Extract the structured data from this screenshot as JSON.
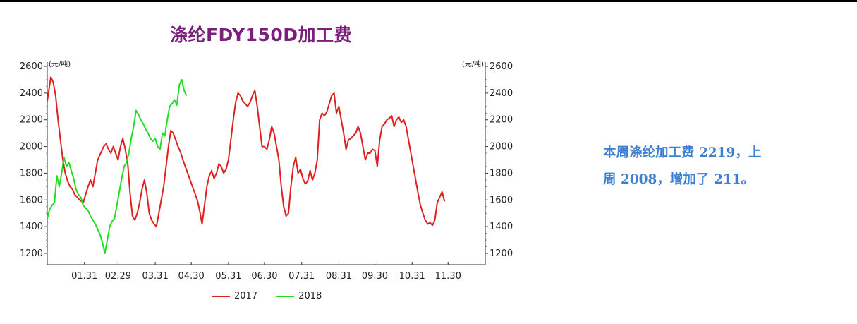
{
  "chart_data": {
    "type": "line",
    "title": "涤纶FDY150D加工费",
    "left_unit": "(元/吨)",
    "right_unit": "(元/吨)",
    "ylim": [
      1200,
      2600
    ],
    "yticks": [
      1200,
      1400,
      1600,
      1800,
      2000,
      2200,
      2400,
      2600
    ],
    "xlim": [
      0,
      365
    ],
    "xticks": [
      {
        "label": "01.31",
        "x": 31
      },
      {
        "label": "02.29",
        "x": 59
      },
      {
        "label": "03.31",
        "x": 90
      },
      {
        "label": "04.30",
        "x": 120
      },
      {
        "label": "05.31",
        "x": 151
      },
      {
        "label": "06.30",
        "x": 181
      },
      {
        "label": "07.31",
        "x": 212
      },
      {
        "label": "08.31",
        "x": 243
      },
      {
        "label": "09.30",
        "x": 273
      },
      {
        "label": "10.31",
        "x": 304
      },
      {
        "label": "11.30",
        "x": 334
      }
    ],
    "legend_position": "bottom",
    "series": [
      {
        "name": "2017",
        "color": "#e02020",
        "points": [
          [
            0,
            2340
          ],
          [
            3,
            2520
          ],
          [
            5,
            2480
          ],
          [
            7,
            2380
          ],
          [
            9,
            2200
          ],
          [
            11,
            2050
          ],
          [
            13,
            1900
          ],
          [
            15,
            1800
          ],
          [
            17,
            1740
          ],
          [
            19,
            1700
          ],
          [
            21,
            1680
          ],
          [
            23,
            1640
          ],
          [
            25,
            1620
          ],
          [
            27,
            1600
          ],
          [
            30,
            1580
          ],
          [
            32,
            1640
          ],
          [
            34,
            1700
          ],
          [
            36,
            1750
          ],
          [
            38,
            1700
          ],
          [
            40,
            1800
          ],
          [
            42,
            1900
          ],
          [
            45,
            1960
          ],
          [
            47,
            2000
          ],
          [
            49,
            2020
          ],
          [
            51,
            1980
          ],
          [
            53,
            1950
          ],
          [
            55,
            2000
          ],
          [
            57,
            1950
          ],
          [
            59,
            1900
          ],
          [
            61,
            2000
          ],
          [
            63,
            2060
          ],
          [
            65,
            1980
          ],
          [
            67,
            1880
          ],
          [
            69,
            1650
          ],
          [
            71,
            1480
          ],
          [
            73,
            1450
          ],
          [
            75,
            1500
          ],
          [
            77,
            1580
          ],
          [
            79,
            1680
          ],
          [
            81,
            1750
          ],
          [
            83,
            1650
          ],
          [
            85,
            1500
          ],
          [
            87,
            1450
          ],
          [
            89,
            1420
          ],
          [
            91,
            1400
          ],
          [
            93,
            1500
          ],
          [
            95,
            1600
          ],
          [
            97,
            1700
          ],
          [
            99,
            1850
          ],
          [
            101,
            2000
          ],
          [
            103,
            2120
          ],
          [
            105,
            2100
          ],
          [
            107,
            2050
          ],
          [
            109,
            2000
          ],
          [
            111,
            1960
          ],
          [
            113,
            1900
          ],
          [
            115,
            1850
          ],
          [
            117,
            1800
          ],
          [
            119,
            1750
          ],
          [
            121,
            1700
          ],
          [
            123,
            1650
          ],
          [
            125,
            1600
          ],
          [
            127,
            1520
          ],
          [
            129,
            1420
          ],
          [
            131,
            1560
          ],
          [
            133,
            1700
          ],
          [
            135,
            1780
          ],
          [
            137,
            1820
          ],
          [
            139,
            1760
          ],
          [
            141,
            1800
          ],
          [
            143,
            1870
          ],
          [
            145,
            1850
          ],
          [
            147,
            1800
          ],
          [
            149,
            1830
          ],
          [
            151,
            1900
          ],
          [
            153,
            2050
          ],
          [
            155,
            2200
          ],
          [
            157,
            2330
          ],
          [
            159,
            2400
          ],
          [
            161,
            2380
          ],
          [
            163,
            2340
          ],
          [
            165,
            2320
          ],
          [
            167,
            2300
          ],
          [
            169,
            2330
          ],
          [
            171,
            2380
          ],
          [
            173,
            2420
          ],
          [
            175,
            2300
          ],
          [
            177,
            2150
          ],
          [
            179,
            2000
          ],
          [
            181,
            2000
          ],
          [
            183,
            1980
          ],
          [
            185,
            2050
          ],
          [
            187,
            2150
          ],
          [
            189,
            2100
          ],
          [
            191,
            2000
          ],
          [
            193,
            1900
          ],
          [
            195,
            1700
          ],
          [
            197,
            1550
          ],
          [
            199,
            1480
          ],
          [
            201,
            1500
          ],
          [
            203,
            1700
          ],
          [
            205,
            1850
          ],
          [
            207,
            1920
          ],
          [
            209,
            1800
          ],
          [
            211,
            1830
          ],
          [
            213,
            1760
          ],
          [
            215,
            1720
          ],
          [
            217,
            1740
          ],
          [
            219,
            1820
          ],
          [
            221,
            1750
          ],
          [
            223,
            1800
          ],
          [
            225,
            1900
          ],
          [
            227,
            2200
          ],
          [
            229,
            2250
          ],
          [
            231,
            2230
          ],
          [
            233,
            2260
          ],
          [
            235,
            2320
          ],
          [
            237,
            2380
          ],
          [
            239,
            2400
          ],
          [
            241,
            2250
          ],
          [
            243,
            2300
          ],
          [
            245,
            2200
          ],
          [
            247,
            2100
          ],
          [
            249,
            1980
          ],
          [
            251,
            2050
          ],
          [
            253,
            2060
          ],
          [
            255,
            2080
          ],
          [
            257,
            2100
          ],
          [
            259,
            2150
          ],
          [
            261,
            2100
          ],
          [
            263,
            2000
          ],
          [
            265,
            1900
          ],
          [
            267,
            1950
          ],
          [
            269,
            1950
          ],
          [
            271,
            1980
          ],
          [
            273,
            1970
          ],
          [
            275,
            1850
          ],
          [
            277,
            2050
          ],
          [
            279,
            2150
          ],
          [
            281,
            2170
          ],
          [
            283,
            2200
          ],
          [
            285,
            2210
          ],
          [
            287,
            2230
          ],
          [
            289,
            2150
          ],
          [
            291,
            2200
          ],
          [
            293,
            2220
          ],
          [
            295,
            2180
          ],
          [
            297,
            2200
          ],
          [
            299,
            2150
          ],
          [
            301,
            2050
          ],
          [
            303,
            1950
          ],
          [
            305,
            1850
          ],
          [
            307,
            1750
          ],
          [
            309,
            1650
          ],
          [
            311,
            1560
          ],
          [
            313,
            1500
          ],
          [
            315,
            1450
          ],
          [
            317,
            1420
          ],
          [
            319,
            1430
          ],
          [
            321,
            1410
          ],
          [
            323,
            1450
          ],
          [
            325,
            1580
          ],
          [
            327,
            1620
          ],
          [
            329,
            1660
          ],
          [
            331,
            1590
          ]
        ]
      },
      {
        "name": "2018",
        "color": "#22dd22",
        "points": [
          [
            0,
            1460
          ],
          [
            2,
            1530
          ],
          [
            4,
            1560
          ],
          [
            6,
            1580
          ],
          [
            8,
            1780
          ],
          [
            10,
            1700
          ],
          [
            12,
            1800
          ],
          [
            14,
            1920
          ],
          [
            16,
            1850
          ],
          [
            18,
            1880
          ],
          [
            20,
            1820
          ],
          [
            22,
            1760
          ],
          [
            24,
            1680
          ],
          [
            26,
            1640
          ],
          [
            28,
            1620
          ],
          [
            30,
            1560
          ],
          [
            32,
            1540
          ],
          [
            34,
            1520
          ],
          [
            36,
            1480
          ],
          [
            38,
            1450
          ],
          [
            40,
            1420
          ],
          [
            42,
            1380
          ],
          [
            44,
            1340
          ],
          [
            46,
            1280
          ],
          [
            48,
            1200
          ],
          [
            50,
            1300
          ],
          [
            52,
            1400
          ],
          [
            54,
            1440
          ],
          [
            56,
            1460
          ],
          [
            58,
            1560
          ],
          [
            60,
            1660
          ],
          [
            62,
            1760
          ],
          [
            64,
            1850
          ],
          [
            66,
            1880
          ],
          [
            68,
            1950
          ],
          [
            70,
            2060
          ],
          [
            72,
            2150
          ],
          [
            74,
            2270
          ],
          [
            76,
            2240
          ],
          [
            78,
            2200
          ],
          [
            80,
            2170
          ],
          [
            82,
            2130
          ],
          [
            84,
            2100
          ],
          [
            86,
            2060
          ],
          [
            88,
            2040
          ],
          [
            90,
            2060
          ],
          [
            92,
            2000
          ],
          [
            94,
            1980
          ],
          [
            96,
            2100
          ],
          [
            98,
            2080
          ],
          [
            100,
            2200
          ],
          [
            102,
            2300
          ],
          [
            104,
            2320
          ],
          [
            106,
            2350
          ],
          [
            108,
            2310
          ],
          [
            110,
            2460
          ],
          [
            112,
            2500
          ],
          [
            114,
            2420
          ],
          [
            116,
            2380
          ]
        ]
      }
    ]
  },
  "note": {
    "line1": "本周涤纶加工费 2219，上",
    "line2": "周 2008，增加了 211。"
  }
}
